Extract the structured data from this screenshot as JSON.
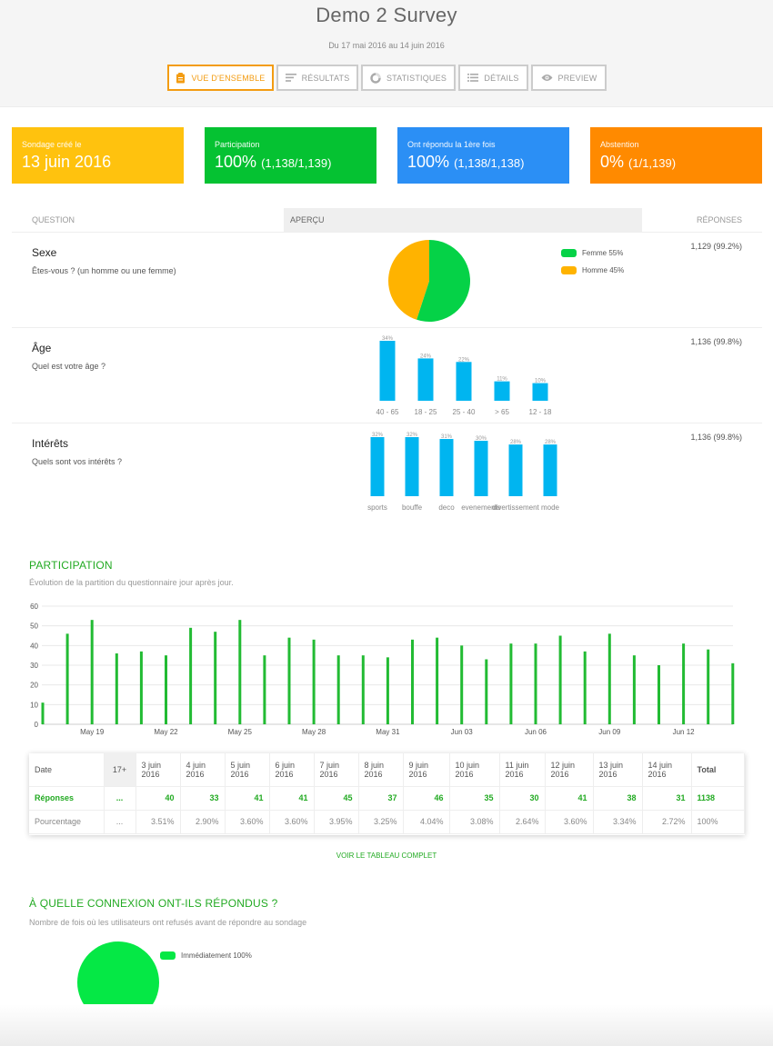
{
  "header": {
    "title": "Demo 2 Survey",
    "dates": "Du 17 mai 2016 au 14 juin 2016",
    "tabs": [
      {
        "label": "Vue d'ensemble",
        "icon": "clipboard-icon",
        "active": true
      },
      {
        "label": "Résultats",
        "icon": "lines-icon",
        "active": false
      },
      {
        "label": "Statistiques",
        "icon": "donut-icon",
        "active": false
      },
      {
        "label": "Détails",
        "icon": "list-icon",
        "active": false
      },
      {
        "label": "Preview",
        "icon": "eye-icon",
        "active": false
      }
    ]
  },
  "cards": [
    {
      "label": "Sondage créé le",
      "value": "13 juin 2016",
      "detail": "",
      "color": "#ffc20e"
    },
    {
      "label": "Participation",
      "value": "100%",
      "detail": "(1,138/1,139)",
      "color": "#05c232"
    },
    {
      "label": "Ont répondu la 1ère fois",
      "value": "100%",
      "detail": "(1,138/1,138)",
      "color": "#2b8ff5"
    },
    {
      "label": "Abstention",
      "value": "0%",
      "detail": "(1/1,139)",
      "color": "#ff8a00"
    }
  ],
  "questions_table": {
    "col_question": "Question",
    "col_preview": "Aperçu",
    "col_responses": "Réponses",
    "rows": [
      {
        "name": "Sexe",
        "text": "Êtes-vous ? (un homme ou une femme)",
        "responses": "1,129 (99.2%)",
        "chart": {
          "type": "pie",
          "slices": [
            {
              "label": "Femme 55%",
              "value": 55,
              "color": "#05d247"
            },
            {
              "label": "Homme 45%",
              "value": 45,
              "color": "#ffb300"
            }
          ]
        }
      },
      {
        "name": "Âge",
        "text": "Quel est votre âge ?",
        "responses": "1,136 (99.8%)",
        "chart": {
          "type": "bar",
          "color": "#00b5f0",
          "categories": [
            "40 - 65",
            "18 - 25",
            "25 - 40",
            "> 65",
            "12 - 18"
          ],
          "values": [
            34,
            24,
            22,
            11,
            10
          ],
          "labels": [
            "34%",
            "24%",
            "22%",
            "11%",
            "10%"
          ]
        }
      },
      {
        "name": "Intérêts",
        "text": "Quels sont vos intérêts ?",
        "responses": "1,136 (99.8%)",
        "chart": {
          "type": "bar",
          "color": "#00b5f0",
          "categories": [
            "sports",
            "bouffe",
            "deco",
            "evenements",
            "divertissement",
            "mode"
          ],
          "values": [
            32,
            32,
            31,
            30,
            28,
            28
          ],
          "labels": [
            "32%",
            "32%",
            "31%",
            "30%",
            "28%",
            "28%"
          ]
        }
      }
    ]
  },
  "participation": {
    "title": "Participation",
    "subtitle": "Évolution de la partition du questionnaire jour après jour."
  },
  "chart_data": {
    "type": "bar",
    "color": "#22bb33",
    "ylim": [
      0,
      60
    ],
    "yticks": [
      "0",
      "10",
      "20",
      "30",
      "40",
      "50",
      "60"
    ],
    "xticks": [
      "May 19",
      "May 22",
      "May 25",
      "May 28",
      "May 31",
      "Jun 03",
      "Jun 06",
      "Jun 09",
      "Jun 12"
    ],
    "grid": true,
    "categories": [
      "May 17",
      "May 18",
      "May 19",
      "May 20",
      "May 21",
      "May 22",
      "May 23",
      "May 24",
      "May 25",
      "May 26",
      "May 27",
      "May 28",
      "May 29",
      "May 30",
      "May 31",
      "Jun 01",
      "Jun 02",
      "Jun 03",
      "Jun 04",
      "Jun 05",
      "Jun 06",
      "Jun 07",
      "Jun 08",
      "Jun 09",
      "Jun 10",
      "Jun 11",
      "Jun 12",
      "Jun 13",
      "Jun 14"
    ],
    "values": [
      11,
      46,
      53,
      36,
      37,
      35,
      49,
      47,
      53,
      35,
      44,
      43,
      35,
      35,
      34,
      43,
      44,
      40,
      33,
      41,
      41,
      45,
      37,
      46,
      35,
      30,
      41,
      38,
      31
    ]
  },
  "daily_table": {
    "headers": [
      "Date",
      "17+",
      "3 juin 2016",
      "4 juin 2016",
      "5 juin 2016",
      "6 juin 2016",
      "7 juin 2016",
      "8 juin 2016",
      "9 juin 2016",
      "10 juin 2016",
      "11 juin 2016",
      "12 juin 2016",
      "13 juin 2016",
      "14 juin 2016",
      "Total"
    ],
    "rows": [
      {
        "cells": [
          "Réponses",
          "...",
          "40",
          "33",
          "41",
          "41",
          "45",
          "37",
          "46",
          "35",
          "30",
          "41",
          "38",
          "31",
          "1138"
        ]
      },
      {
        "cells": [
          "Pourcentage",
          "...",
          "3.51%",
          "2.90%",
          "3.60%",
          "3.60%",
          "3.95%",
          "3.25%",
          "4.04%",
          "3.08%",
          "2.64%",
          "3.60%",
          "3.34%",
          "2.72%",
          "100%"
        ]
      }
    ],
    "link": "Voir le tableau complet"
  },
  "connection": {
    "title": "À quelle connexion ont-ils répondus ?",
    "subtitle": "Nombre de fois où les utilisateurs ont refusés avant de répondre au sondage",
    "slices": [
      {
        "label": "Immédiatement 100%",
        "value": 100,
        "color": "#05e845"
      }
    ]
  }
}
